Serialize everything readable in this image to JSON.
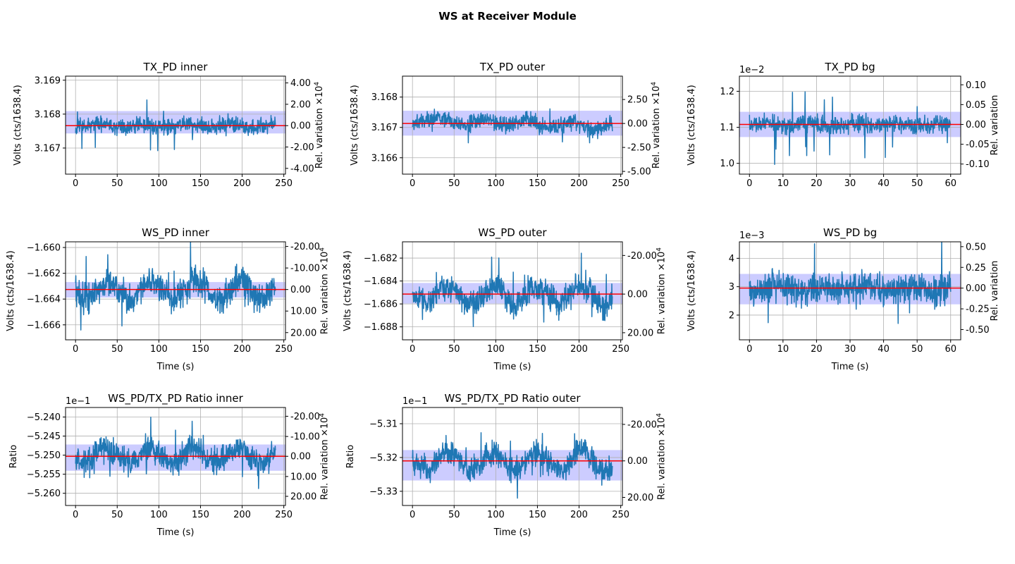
{
  "figure": {
    "title": "WS at Receiver Module"
  },
  "colors": {
    "signal": "#1f77b4",
    "mean": "#ff0000",
    "band": "#0000ff",
    "grid": "#b0b0b0"
  },
  "chart_data": [
    {
      "type": "line",
      "title": "TX_PD inner",
      "ylabel": "Volts (cts/1638.4)",
      "xlabel": "",
      "y2label": "Rel. variation ×10^4",
      "xlim": [
        -12,
        252
      ],
      "ylim": [
        3.16623,
        3.16912
      ],
      "xticks": [
        "0",
        "50",
        "100",
        "150",
        "200",
        "250"
      ],
      "xtick_values": [
        0,
        50,
        100,
        150,
        200,
        250
      ],
      "yticks": [
        "3.167",
        "3.168",
        "3.169"
      ],
      "ytick_values": [
        3.167,
        3.168,
        3.169
      ],
      "y2ticks": [
        "4.00",
        "2.00",
        "0.00",
        "-2.00",
        "-4.00"
      ],
      "y2tick_values": [
        3.16892,
        3.16829,
        3.16766,
        3.16703,
        3.1664
      ],
      "y_offset_label": "",
      "mean": 3.16766,
      "band": [
        3.16743,
        3.16809
      ],
      "series": {
        "x_end": 240,
        "noise": 0.00025,
        "spike": 0.0007,
        "drift": 0,
        "slow": 5e-05,
        "seed": 11
      }
    },
    {
      "type": "line",
      "title": "TX_PD outer",
      "ylabel": "Volts (cts/1638.4)",
      "xlabel": "",
      "y2label": "Rel. variation ×10^4",
      "xlim": [
        -12,
        252
      ],
      "ylim": [
        3.16546,
        3.16869
      ],
      "xticks": [
        "0",
        "50",
        "100",
        "150",
        "200",
        "250"
      ],
      "xtick_values": [
        0,
        50,
        100,
        150,
        200,
        250
      ],
      "yticks": [
        "3.166",
        "3.167",
        "3.168"
      ],
      "ytick_values": [
        3.166,
        3.167,
        3.168
      ],
      "y2ticks": [
        "2.50",
        "0.00",
        "-2.50",
        "-5.00"
      ],
      "y2tick_values": [
        3.16792,
        3.16713,
        3.16634,
        3.16555
      ],
      "y_offset_label": "",
      "mean": 3.16713,
      "band": [
        3.16673,
        3.16755
      ],
      "series": {
        "x_end": 240,
        "noise": 0.00028,
        "spike": 0.0006,
        "drift": -0.0004,
        "slow": 0.0001,
        "seed": 23
      }
    },
    {
      "type": "line",
      "title": "TX_PD bg",
      "ylabel": "Volts (cts/1638.4)",
      "xlabel": "",
      "y2label": "Rel. variation",
      "xlim": [
        -3,
        63
      ],
      "ylim": [
        0.0097,
        0.01242
      ],
      "xticks": [
        "0",
        "10",
        "20",
        "30",
        "40",
        "50",
        "60"
      ],
      "xtick_values": [
        0,
        10,
        20,
        30,
        40,
        50,
        60
      ],
      "yticks": [
        "1.0",
        "1.1",
        "1.2"
      ],
      "ytick_values": [
        0.01,
        0.011,
        0.012
      ],
      "y2ticks": [
        "0.10",
        "0.05",
        "0.00",
        "-0.05",
        "-0.10"
      ],
      "y2tick_values": [
        0.01218,
        0.01163,
        0.01108,
        0.01053,
        0.00998
      ],
      "y_offset_label": "1e−2",
      "mean": 0.01108,
      "band": [
        0.01073,
        0.01143
      ],
      "series": {
        "x_end": 60,
        "noise": 0.00025,
        "spike": 0.0011,
        "drift": 0,
        "slow": 3e-05,
        "seed": 37
      }
    },
    {
      "type": "line",
      "title": "WS_PD inner",
      "ylabel": "Volts (cts/1638.4)",
      "xlabel": "Time (s)",
      "y2label": "Rel. variation ×10^4",
      "xlim": [
        -12,
        252
      ],
      "ylim": [
        -1.66716,
        -1.65956
      ],
      "xticks": [
        "0",
        "50",
        "100",
        "150",
        "200",
        "250"
      ],
      "xtick_values": [
        0,
        50,
        100,
        150,
        200,
        250
      ],
      "yticks": [
        "−1.666",
        "−1.664",
        "−1.662",
        "−1.660"
      ],
      "ytick_values": [
        -1.666,
        -1.664,
        -1.662,
        -1.66
      ],
      "y2ticks": [
        "-20.00",
        "-10.00",
        "0.00",
        "10.00",
        "20.00"
      ],
      "y2tick_values": [
        -1.65992,
        -1.66159,
        -1.66326,
        -1.66493,
        -1.6666
      ],
      "y_offset_label": "",
      "mean": -1.66326,
      "band": [
        -1.66388,
        -1.66268
      ],
      "series": {
        "x_end": 240,
        "noise": 0.0012,
        "spike": 0.0025,
        "drift": 0,
        "slow": 0.0007,
        "seed": 41
      }
    },
    {
      "type": "line",
      "title": "WS_PD outer",
      "ylabel": "Volts (cts/1638.4)",
      "xlabel": "Time (s)",
      "y2label": "Rel. variation ×10^4",
      "xlim": [
        -12,
        252
      ],
      "ylim": [
        -1.68913,
        -1.68058
      ],
      "xticks": [
        "0",
        "50",
        "100",
        "150",
        "200",
        "250"
      ],
      "xtick_values": [
        0,
        50,
        100,
        150,
        200,
        250
      ],
      "yticks": [
        "−1.688",
        "−1.686",
        "−1.684",
        "−1.682"
      ],
      "ytick_values": [
        -1.688,
        -1.686,
        -1.684,
        -1.682
      ],
      "y2ticks": [
        "-20.00",
        "0.00",
        "20.00"
      ],
      "y2tick_values": [
        -1.68177,
        -1.68514,
        -1.68851
      ],
      "y_offset_label": "",
      "mean": -1.68514,
      "band": [
        -1.68597,
        -1.68417
      ],
      "series": {
        "x_end": 240,
        "noise": 0.0012,
        "spike": 0.0025,
        "drift": 0,
        "slow": 0.0008,
        "seed": 53
      }
    },
    {
      "type": "line",
      "title": "WS_PD bg",
      "ylabel": "Volts (cts/1638.4)",
      "xlabel": "Time (s)",
      "y2label": "Rel. variation",
      "xlim": [
        -3,
        63
      ],
      "ylim": [
        0.00113,
        0.00458
      ],
      "xticks": [
        "0",
        "10",
        "20",
        "30",
        "40",
        "50",
        "60"
      ],
      "xtick_values": [
        0,
        10,
        20,
        30,
        40,
        50,
        60
      ],
      "yticks": [
        "2",
        "3",
        "4"
      ],
      "ytick_values": [
        0.002,
        0.003,
        0.004
      ],
      "y2ticks": [
        "0.50",
        "0.25",
        "0.00",
        "-0.25",
        "-0.50"
      ],
      "y2tick_values": [
        0.00441,
        0.00368,
        0.00295,
        0.00222,
        0.00149
      ],
      "y_offset_label": "1e−3",
      "mean": 0.00295,
      "band": [
        0.00238,
        0.00345
      ],
      "series": {
        "x_end": 60,
        "noise": 0.00055,
        "spike": 0.0014,
        "drift": 0,
        "slow": 0.0001,
        "seed": 67
      }
    },
    {
      "type": "line",
      "title": "WS_PD/TX_PD Ratio inner",
      "ylabel": "Ratio",
      "xlabel": "Time (s)",
      "y2label": "Rel. variation ×10^4",
      "xlim": [
        -12,
        252
      ],
      "ylim": [
        -0.52632,
        -0.52375
      ],
      "xticks": [
        "0",
        "50",
        "100",
        "150",
        "200",
        "250"
      ],
      "xtick_values": [
        0,
        50,
        100,
        150,
        200,
        250
      ],
      "yticks": [
        "−5.260",
        "−5.255",
        "−5.250",
        "−5.245",
        "−5.240"
      ],
      "ytick_values": [
        -0.526,
        -0.5255,
        -0.525,
        -0.5245,
        -0.524
      ],
      "y2ticks": [
        "-20.00",
        "-10.00",
        "0.00",
        "10.00",
        "20.00"
      ],
      "y2tick_values": [
        -0.52398,
        -0.52451,
        -0.52503,
        -0.52556,
        -0.52608
      ],
      "y_offset_label": "1e−1",
      "mean": -0.52503,
      "band": [
        -0.52541,
        -0.52472
      ],
      "series": {
        "x_end": 240,
        "noise": 0.00038,
        "spike": 0.0008,
        "drift": 0,
        "slow": 0.00022,
        "seed": 79
      }
    },
    {
      "type": "line",
      "title": "WS_PD/TX_PD Ratio outer",
      "ylabel": "Ratio",
      "xlabel": "Time (s)",
      "y2label": "Rel. variation ×10^4",
      "xlim": [
        -12,
        252
      ],
      "ylim": [
        -0.53342,
        -0.53052
      ],
      "xticks": [
        "0",
        "50",
        "100",
        "150",
        "200",
        "250"
      ],
      "xtick_values": [
        0,
        50,
        100,
        150,
        200,
        250
      ],
      "yticks": [
        "−5.33",
        "−5.32",
        "−5.31"
      ],
      "ytick_values": [
        -0.533,
        -0.532,
        -0.531
      ],
      "y2ticks": [
        "-20.00",
        "0.00",
        "20.00"
      ],
      "y2tick_values": [
        -0.53102,
        -0.5321,
        -0.53318
      ],
      "y_offset_label": "1e−1",
      "mean": -0.5321,
      "band": [
        -0.53268,
        -0.53178
      ],
      "series": {
        "x_end": 240,
        "noise": 0.00038,
        "spike": 0.0008,
        "drift": 0,
        "slow": 0.00028,
        "seed": 97
      }
    }
  ]
}
